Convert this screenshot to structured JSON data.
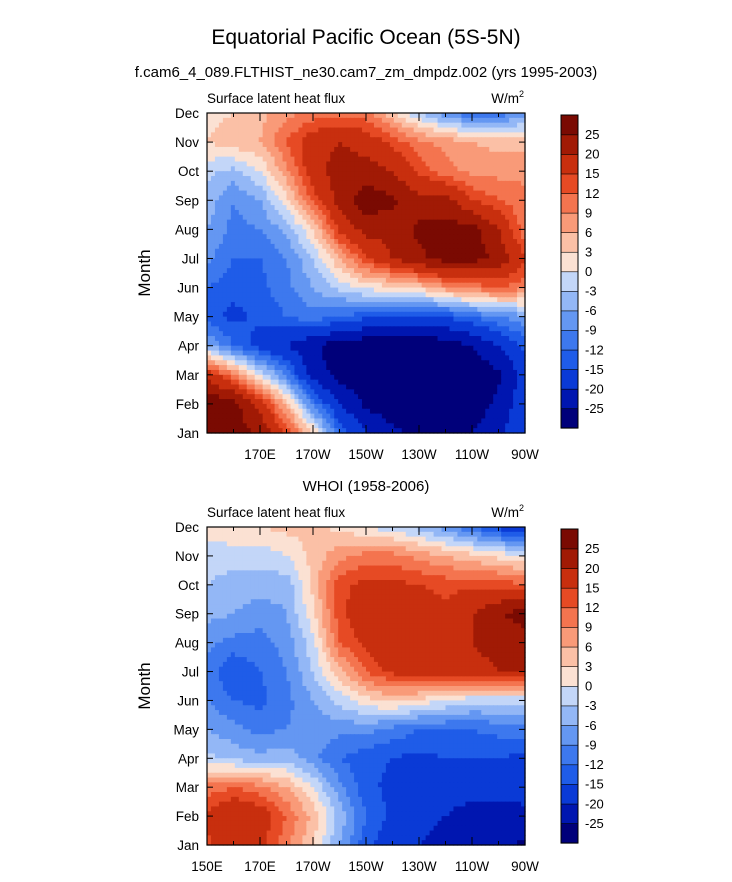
{
  "header": {
    "title": "Equatorial Pacific Ocean (5S-5N)",
    "subtitle": "f.cam6_4_089.FLTHIST_ne30.cam7_zm_dmpdz.002 (yrs 1995-2003)"
  },
  "colorbar": {
    "levels": [
      -25,
      -20,
      -15,
      -12,
      -9,
      -6,
      -3,
      0,
      3,
      6,
      9,
      12,
      15,
      20,
      25
    ],
    "labels": [
      "-25",
      "-20",
      "-15",
      "-12",
      "-9",
      "-6",
      "-3",
      "0",
      "3",
      "6",
      "9",
      "12",
      "15",
      "20",
      "25"
    ],
    "colors": [
      "#00007a",
      "#0016b0",
      "#0a3ad6",
      "#1f5ce8",
      "#3d78ee",
      "#6497f2",
      "#93b7f6",
      "#c3d6f8",
      "#fbe1d3",
      "#fbc0a6",
      "#f99a78",
      "#f4744f",
      "#e64a24",
      "#c82f0e",
      "#a11a05",
      "#7a0a02"
    ]
  },
  "chart_data": [
    {
      "type": "heatmap",
      "title": "f.cam6_4_089.FLTHIST_ne30.cam7_zm_dmpdz.002 (yrs 1995-2003)",
      "left_label": "Surface latent heat flux",
      "right_label": "W/m",
      "right_label_sup": "2",
      "ylabel": "Month",
      "xlabel": "",
      "x_ticks": [
        "170E",
        "170W",
        "150W",
        "130W",
        "110W",
        "90W"
      ],
      "y_ticks": [
        "Jan",
        "Feb",
        "Mar",
        "Apr",
        "May",
        "Jun",
        "Jul",
        "Aug",
        "Sep",
        "Oct",
        "Nov",
        "Dec"
      ],
      "x_range": [
        "150E",
        "90W"
      ],
      "x_lon": [
        150,
        160,
        170,
        180,
        190,
        200,
        210,
        220,
        230,
        240,
        250,
        260,
        270
      ],
      "y_month": [
        1,
        2,
        3,
        4,
        5,
        6,
        7,
        8,
        9,
        10,
        11,
        12
      ],
      "z": [
        [
          30,
          28,
          24,
          15,
          3,
          -12,
          -20,
          -24,
          -26,
          -26,
          -25,
          -21,
          -15
        ],
        [
          30,
          27,
          18,
          5,
          -10,
          -20,
          -26,
          -28,
          -29,
          -29,
          -28,
          -24,
          -16
        ],
        [
          18,
          10,
          0,
          -10,
          -22,
          -27,
          -29,
          -30,
          -30,
          -30,
          -29,
          -26,
          -18
        ],
        [
          -5,
          -12,
          -17,
          -20,
          -24,
          -28,
          -29,
          -29,
          -29,
          -28,
          -25,
          -20,
          -14
        ],
        [
          -14,
          -16,
          -14,
          -12,
          -10,
          -12,
          -14,
          -15,
          -16,
          -15,
          -12,
          -9,
          -7
        ],
        [
          -12,
          -14,
          -13,
          -10,
          -6,
          -2,
          1,
          2,
          4,
          8,
          10,
          12,
          10
        ],
        [
          -8,
          -12,
          -12,
          -9,
          -3,
          6,
          14,
          20,
          24,
          27,
          27,
          24,
          15
        ],
        [
          -6,
          -10,
          -9,
          -5,
          3,
          16,
          22,
          22,
          26,
          27,
          27,
          20,
          10
        ],
        [
          -4,
          -9,
          -6,
          2,
          13,
          22,
          28,
          26,
          22,
          22,
          15,
          12,
          10
        ],
        [
          -2,
          -4,
          0,
          8,
          18,
          22,
          22,
          20,
          14,
          10,
          8,
          8,
          8
        ],
        [
          3,
          5,
          6,
          12,
          18,
          20,
          18,
          14,
          10,
          8,
          6,
          5,
          5
        ],
        [
          2,
          3,
          5,
          8,
          10,
          11,
          10,
          4,
          -3,
          -8,
          -12,
          -11,
          -8
        ]
      ]
    },
    {
      "type": "heatmap",
      "title": "WHOI (1958-2006)",
      "left_label": "Surface latent heat flux",
      "right_label": "W/m",
      "right_label_sup": "2",
      "ylabel": "Month",
      "xlabel": "",
      "x_ticks": [
        "150E",
        "170E",
        "170W",
        "150W",
        "130W",
        "110W",
        "90W"
      ],
      "y_ticks": [
        "Jan",
        "Feb",
        "Mar",
        "Apr",
        "May",
        "Jun",
        "Jul",
        "Aug",
        "Sep",
        "Oct",
        "Nov",
        "Dec"
      ],
      "x_range": [
        "150E",
        "90W"
      ],
      "x_lon": [
        150,
        160,
        170,
        180,
        190,
        200,
        210,
        220,
        230,
        240,
        250,
        260,
        270
      ],
      "y_month": [
        1,
        2,
        3,
        4,
        5,
        6,
        7,
        8,
        9,
        10,
        11,
        12
      ],
      "z": [
        [
          14,
          18,
          16,
          10,
          3,
          -6,
          -14,
          -18,
          -20,
          -22,
          -23,
          -24,
          -26
        ],
        [
          16,
          20,
          18,
          12,
          5,
          -4,
          -12,
          -16,
          -18,
          -20,
          -22,
          -22,
          -22
        ],
        [
          10,
          12,
          10,
          6,
          0,
          -8,
          -14,
          -16,
          -18,
          -18,
          -18,
          -18,
          -17
        ],
        [
          -2,
          -4,
          -5,
          -4,
          -8,
          -12,
          -14,
          -15,
          -16,
          -15,
          -15,
          -15,
          -16
        ],
        [
          -6,
          -8,
          -10,
          -9,
          -8,
          -8,
          -8,
          -10,
          -12,
          -12,
          -12,
          -11,
          -10
        ],
        [
          -9,
          -12,
          -13,
          -10,
          -6,
          -2,
          2,
          4,
          2,
          0,
          -2,
          -2,
          -2
        ],
        [
          -10,
          -15,
          -12,
          -9,
          -3,
          5,
          12,
          16,
          18,
          18,
          18,
          20,
          20
        ],
        [
          -8,
          -10,
          -10,
          -8,
          -1,
          12,
          16,
          20,
          18,
          18,
          20,
          22,
          22
        ],
        [
          -5,
          -6,
          -8,
          -6,
          2,
          14,
          18,
          20,
          18,
          16,
          20,
          24,
          28
        ],
        [
          -3,
          -4,
          -4,
          -5,
          4,
          14,
          16,
          16,
          15,
          14,
          14,
          14,
          12
        ],
        [
          -2,
          -2,
          -2,
          0,
          4,
          8,
          10,
          10,
          8,
          6,
          4,
          2,
          0
        ],
        [
          2,
          3,
          3,
          4,
          4,
          2,
          0,
          -2,
          -4,
          -8,
          -12,
          -16,
          -20
        ]
      ]
    }
  ]
}
